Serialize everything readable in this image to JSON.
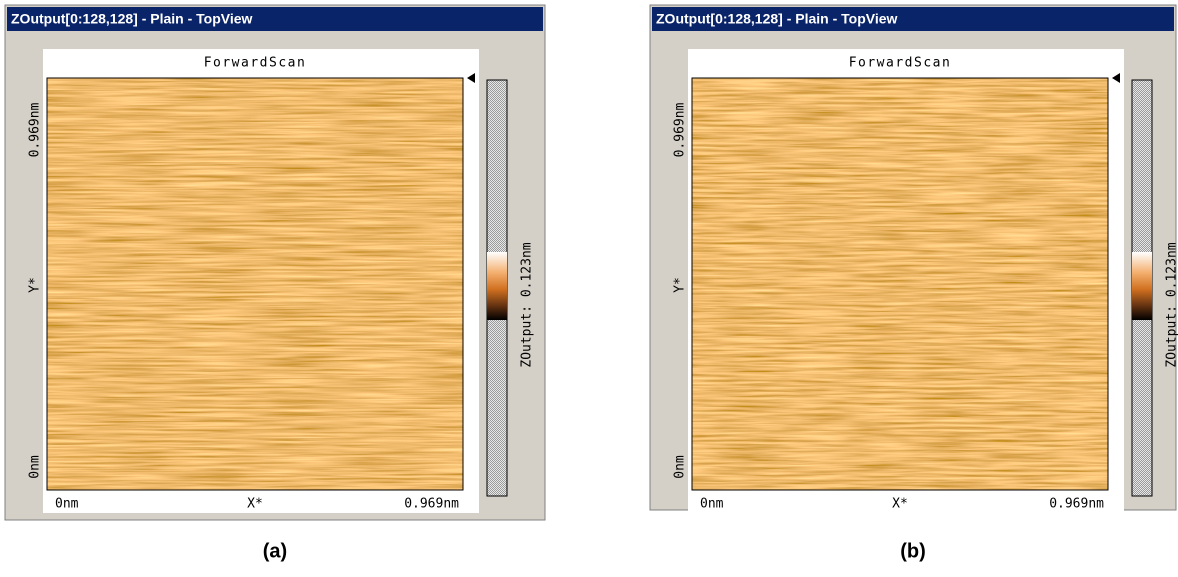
{
  "panels": [
    {
      "window_title": "ZOutput[0:128,128] - Plain - TopView",
      "image_title": "ForwardScan",
      "y_labels": [
        "0.969nm",
        "Y*",
        "0nm"
      ],
      "x_labels": [
        "0nm",
        "X*",
        "0.969nm"
      ],
      "colorbar_label": "ZOutput: 0.123nm",
      "caption": "(a)"
    },
    {
      "window_title": "ZOutput[0:128,128] - Plain - TopView",
      "image_title": "ForwardScan",
      "y_labels": [
        "0.969nm",
        "Y*",
        "0nm"
      ],
      "x_labels": [
        "0nm",
        "X*",
        "0.969nm"
      ],
      "colorbar_label": "ZOutput: 0.123nm",
      "caption": "(b)"
    }
  ]
}
